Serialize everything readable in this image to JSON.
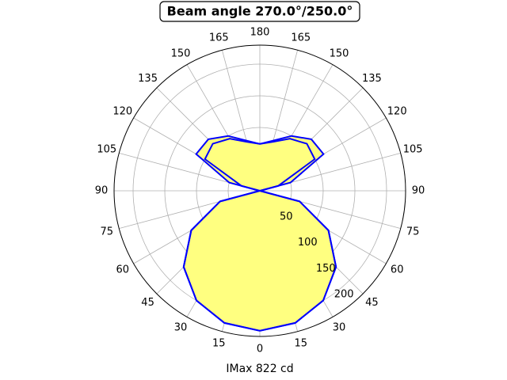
{
  "chart_data": {
    "type": "polar",
    "title": "Beam angle 270.0°/250.0°",
    "xlabel": "IMax 822 cd",
    "x": [
      0,
      15,
      30,
      45,
      60,
      75,
      90,
      105,
      120,
      135,
      150,
      165,
      180
    ],
    "series": [
      {
        "color": "#0000ff",
        "values": [
          221,
          216,
          200,
          170,
          125,
          65,
          0,
          50,
          116,
          115,
          100,
          82,
          74
        ]
      },
      {
        "color": "#0000ff",
        "values": [
          221,
          216,
          200,
          170,
          125,
          65,
          0,
          30,
          100,
          105,
          95,
          80,
          74
        ]
      }
    ],
    "fill_color": "#ffff80",
    "rlim": [
      0,
      230
    ],
    "rticks": [
      50,
      100,
      150,
      200
    ],
    "xticks": [
      0,
      15,
      30,
      45,
      60,
      75,
      90,
      105,
      120,
      135,
      150,
      165,
      180,
      {
        "value": 195,
        "label": "165"
      },
      {
        "value": 210,
        "label": "150"
      },
      {
        "value": 225,
        "label": "135"
      },
      {
        "value": 240,
        "label": "120"
      },
      {
        "value": 255,
        "label": "105"
      },
      {
        "value": 270,
        "label": "90"
      },
      {
        "value": 285,
        "label": "75"
      },
      {
        "value": 300,
        "label": "60"
      },
      {
        "value": 315,
        "label": "45"
      },
      {
        "value": 330,
        "label": "30"
      },
      {
        "value": 345,
        "label": "15"
      }
    ],
    "grid": true
  }
}
